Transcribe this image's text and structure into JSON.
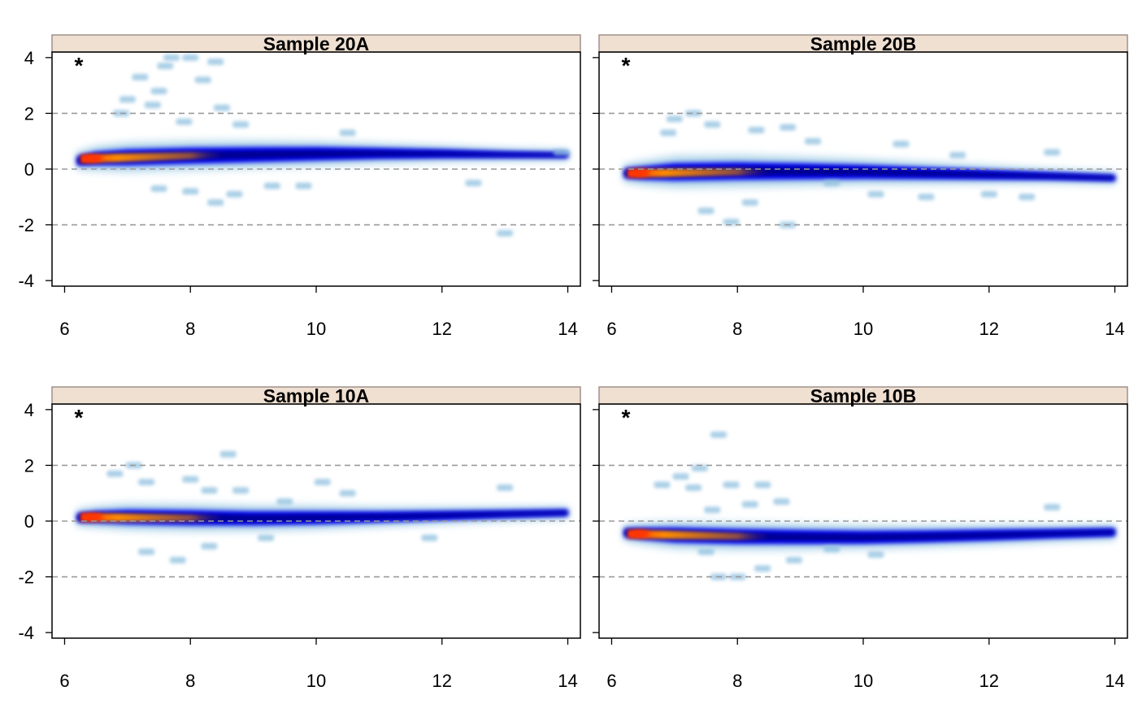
{
  "chart_data": {
    "type": "scatter",
    "subtype": "smoothed-density scatter (MA plot)",
    "strip_color": "#efe0d2",
    "strip_border_color": "#a0908a",
    "reference_line_color": "#9a9a9a",
    "density_colors": [
      "#cfe6f2",
      "#8fc0df",
      "#0000ff",
      "#00008b",
      "#ff8c00",
      "#ff3300"
    ],
    "xlim": [
      5.8,
      14.2
    ],
    "ylim": [
      -4.2,
      4.2
    ],
    "x_ticks": [
      6,
      8,
      10,
      12,
      14
    ],
    "y_ticks": [
      -4,
      -2,
      0,
      2,
      4
    ],
    "reference_lines_y": [
      -2,
      0,
      2
    ],
    "panels": [
      {
        "title": "Sample 20A",
        "marker": "*",
        "show_y_axis": true,
        "trend": {
          "x": [
            6.2,
            6.5,
            7,
            8,
            9,
            10,
            11,
            12,
            13,
            14
          ],
          "y": [
            0.3,
            0.38,
            0.42,
            0.48,
            0.52,
            0.55,
            0.56,
            0.55,
            0.52,
            0.5
          ]
        },
        "spread": [
          0.18,
          0.25,
          0.3,
          0.3,
          0.28,
          0.25,
          0.2,
          0.16,
          0.12,
          0.1
        ],
        "outliers": [
          {
            "x": 7.2,
            "y": 3.3
          },
          {
            "x": 7.5,
            "y": 2.8
          },
          {
            "x": 7.0,
            "y": 2.5
          },
          {
            "x": 7.7,
            "y": 4.0
          },
          {
            "x": 8.0,
            "y": 4.0
          },
          {
            "x": 7.6,
            "y": 3.7
          },
          {
            "x": 8.2,
            "y": 3.2
          },
          {
            "x": 8.4,
            "y": 3.85
          },
          {
            "x": 8.5,
            "y": 2.2
          },
          {
            "x": 6.9,
            "y": 2.0
          },
          {
            "x": 7.4,
            "y": 2.3
          },
          {
            "x": 7.9,
            "y": 1.7
          },
          {
            "x": 8.8,
            "y": 1.6
          },
          {
            "x": 10.5,
            "y": 1.3
          },
          {
            "x": 7.5,
            "y": -0.7
          },
          {
            "x": 8.0,
            "y": -0.8
          },
          {
            "x": 8.4,
            "y": -1.2
          },
          {
            "x": 8.7,
            "y": -0.9
          },
          {
            "x": 9.3,
            "y": -0.6
          },
          {
            "x": 9.8,
            "y": -0.6
          },
          {
            "x": 12.5,
            "y": -0.5
          },
          {
            "x": 13.0,
            "y": -2.3
          },
          {
            "x": 13.9,
            "y": 0.6
          }
        ]
      },
      {
        "title": "Sample 20B",
        "marker": "*",
        "show_y_axis": false,
        "trend": {
          "x": [
            6.2,
            6.5,
            7,
            8,
            9,
            10,
            11,
            12,
            13,
            14
          ],
          "y": [
            -0.15,
            -0.14,
            -0.1,
            -0.07,
            -0.08,
            -0.1,
            -0.15,
            -0.2,
            -0.25,
            -0.32
          ]
        },
        "spread": [
          0.18,
          0.25,
          0.33,
          0.33,
          0.3,
          0.26,
          0.22,
          0.18,
          0.14,
          0.12
        ],
        "outliers": [
          {
            "x": 7.0,
            "y": 1.8
          },
          {
            "x": 7.3,
            "y": 2.0
          },
          {
            "x": 7.6,
            "y": 1.6
          },
          {
            "x": 6.9,
            "y": 1.3
          },
          {
            "x": 8.3,
            "y": 1.4
          },
          {
            "x": 8.8,
            "y": 1.5
          },
          {
            "x": 9.2,
            "y": 1.0
          },
          {
            "x": 10.6,
            "y": 0.9
          },
          {
            "x": 11.5,
            "y": 0.5
          },
          {
            "x": 13.0,
            "y": 0.6
          },
          {
            "x": 7.5,
            "y": -1.5
          },
          {
            "x": 7.9,
            "y": -1.9
          },
          {
            "x": 8.8,
            "y": -2.0
          },
          {
            "x": 8.2,
            "y": -1.2
          },
          {
            "x": 9.5,
            "y": -0.5
          },
          {
            "x": 10.2,
            "y": -0.9
          },
          {
            "x": 11.0,
            "y": -1.0
          },
          {
            "x": 12.0,
            "y": -0.9
          },
          {
            "x": 12.6,
            "y": -1.0
          }
        ]
      },
      {
        "title": "Sample 10A",
        "marker": "*",
        "show_y_axis": true,
        "trend": {
          "x": [
            6.2,
            6.5,
            7,
            8,
            9,
            10,
            11,
            12,
            13,
            14
          ],
          "y": [
            0.12,
            0.15,
            0.15,
            0.12,
            0.1,
            0.12,
            0.15,
            0.2,
            0.25,
            0.3
          ]
        },
        "spread": [
          0.17,
          0.22,
          0.27,
          0.28,
          0.26,
          0.24,
          0.2,
          0.17,
          0.14,
          0.12
        ],
        "outliers": [
          {
            "x": 7.1,
            "y": 2.0
          },
          {
            "x": 6.8,
            "y": 1.7
          },
          {
            "x": 7.3,
            "y": 1.4
          },
          {
            "x": 8.0,
            "y": 1.5
          },
          {
            "x": 8.6,
            "y": 2.4
          },
          {
            "x": 8.3,
            "y": 1.1
          },
          {
            "x": 8.8,
            "y": 1.1
          },
          {
            "x": 9.5,
            "y": 0.7
          },
          {
            "x": 10.1,
            "y": 1.4
          },
          {
            "x": 10.5,
            "y": 1.0
          },
          {
            "x": 13.0,
            "y": 1.2
          },
          {
            "x": 7.3,
            "y": -1.1
          },
          {
            "x": 7.8,
            "y": -1.4
          },
          {
            "x": 8.3,
            "y": -0.9
          },
          {
            "x": 9.2,
            "y": -0.6
          },
          {
            "x": 11.8,
            "y": -0.6
          }
        ]
      },
      {
        "title": "Sample 10B",
        "marker": "*",
        "show_y_axis": false,
        "trend": {
          "x": [
            6.2,
            6.5,
            7,
            8,
            9,
            10,
            11,
            12,
            13,
            14
          ],
          "y": [
            -0.42,
            -0.45,
            -0.5,
            -0.55,
            -0.57,
            -0.58,
            -0.55,
            -0.5,
            -0.45,
            -0.4
          ]
        },
        "spread": [
          0.17,
          0.22,
          0.28,
          0.28,
          0.26,
          0.24,
          0.22,
          0.2,
          0.17,
          0.15
        ],
        "outliers": [
          {
            "x": 7.7,
            "y": 3.1
          },
          {
            "x": 7.4,
            "y": 1.9
          },
          {
            "x": 7.1,
            "y": 1.6
          },
          {
            "x": 6.8,
            "y": 1.3
          },
          {
            "x": 7.3,
            "y": 1.2
          },
          {
            "x": 7.9,
            "y": 1.3
          },
          {
            "x": 8.4,
            "y": 1.3
          },
          {
            "x": 8.7,
            "y": 0.7
          },
          {
            "x": 8.2,
            "y": 0.6
          },
          {
            "x": 7.6,
            "y": 0.4
          },
          {
            "x": 13.0,
            "y": 0.5
          },
          {
            "x": 7.7,
            "y": -2.0
          },
          {
            "x": 8.0,
            "y": -2.0
          },
          {
            "x": 8.4,
            "y": -1.7
          },
          {
            "x": 8.9,
            "y": -1.4
          },
          {
            "x": 7.5,
            "y": -1.1
          },
          {
            "x": 9.5,
            "y": -1.0
          },
          {
            "x": 10.2,
            "y": -1.2
          }
        ]
      }
    ]
  }
}
